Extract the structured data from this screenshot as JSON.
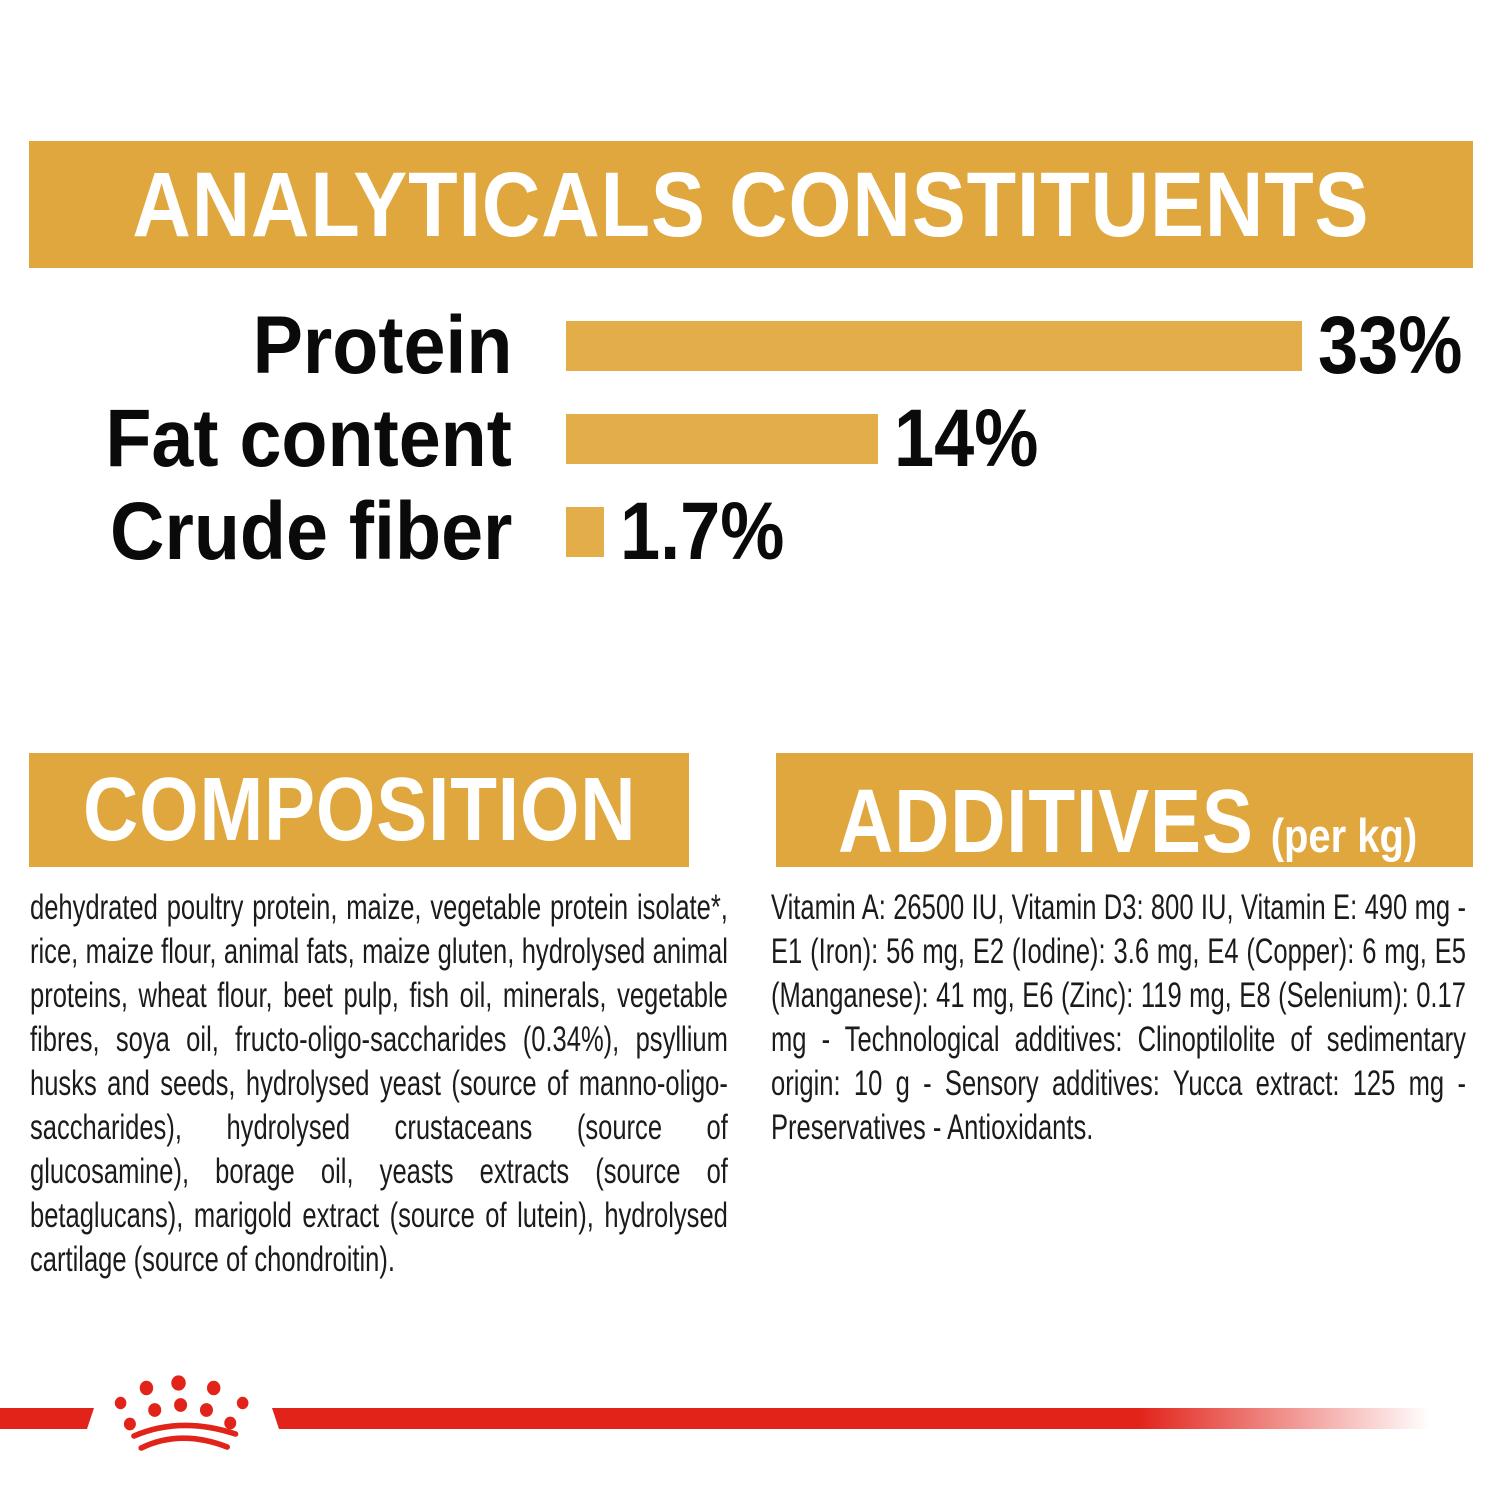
{
  "colors": {
    "banner_gold": "#DFA73E",
    "bar_gold": "#E3AD49",
    "brand_red": "#E2231A",
    "banner_text": "#FFFFFF",
    "body_text": "#1B1B1B"
  },
  "analytical": {
    "title": "ANALYTICALS CONSTITUENTS"
  },
  "chart_data": {
    "type": "bar",
    "orientation": "horizontal",
    "title": "ANALYTICALS CONSTITUENTS",
    "categories": [
      "Protein",
      "Fat content",
      "Crude fiber"
    ],
    "values": [
      33,
      14,
      1.7
    ],
    "value_labels": [
      "33%",
      "14%",
      "1.7%"
    ],
    "unit": "percent",
    "xlim": [
      0,
      33
    ],
    "bar_color": "#E3AD49",
    "grid": false,
    "legend": false
  },
  "composition": {
    "title": "COMPOSITION",
    "body": "dehydrated poultry protein, maize, vegetable protein isolate*, rice, maize flour, animal fats, maize gluten, hydrolysed animal proteins, wheat flour, beet pulp, fish oil, minerals, vegetable fibres, soya oil, fructo-oligo-saccharides (0.34%), psyllium husks and seeds, hydrolysed yeast (source of manno-oligo-saccharides), hydrolysed crustaceans (source of glucosamine), borage oil, yeasts extracts (source of betaglucans), marigold extract (source of lutein), hydrolysed cartilage (source of chondroitin)."
  },
  "additives": {
    "title": "ADDITIVES",
    "title_suffix": "(per kg)",
    "body": "Vitamin A: 26500 IU, Vitamin D3: 800 IU, Vitamin E: 490 mg - E1 (Iron): 56 mg, E2 (Iodine): 3.6 mg, E4 (Copper): 6 mg, E5 (Manganese): 41 mg, E6 (Zinc): 119 mg, E8 (Selenium): 0.17 mg - Technological additives: Clinoptilolite of sedimentary origin: 10 g - Sensory additives: Yucca extract: 125 mg - Preservatives - Antioxidants."
  }
}
